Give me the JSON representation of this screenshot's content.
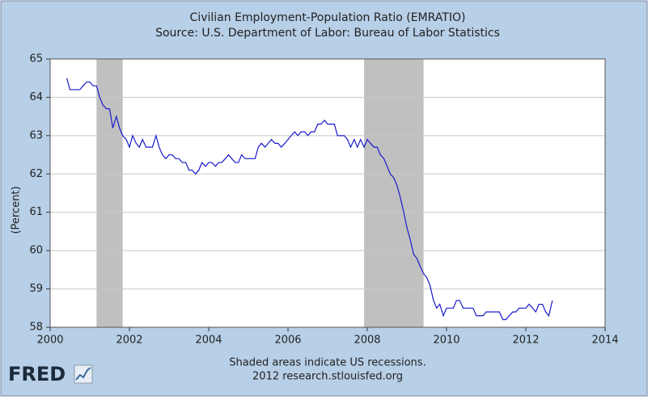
{
  "logo": "FRED",
  "chart_data": {
    "type": "line",
    "title": "Civilian Employment-Population Ratio (EMRATIO)",
    "subtitle": "Source: U.S. Department of Labor: Bureau of Labor Statistics",
    "y_label": "(Percent)",
    "notes": [
      "Shaded areas indicate US recessions.",
      "2012 research.stlouisfed.org"
    ],
    "color": "#1a1acc",
    "recession_color": "#c0c0c0",
    "recessions": [
      [
        2001.17,
        2001.83
      ],
      [
        2007.92,
        2009.42
      ]
    ],
    "xlim": [
      2000,
      2014
    ],
    "ylim": [
      58,
      65
    ],
    "xticks": [
      2000,
      2002,
      2004,
      2006,
      2008,
      2010,
      2012,
      2014
    ],
    "yticks": [
      58,
      59,
      60,
      61,
      62,
      63,
      64,
      65
    ],
    "grid": true,
    "x": [
      2000.42,
      2000.5,
      2000.58,
      2000.67,
      2000.75,
      2000.83,
      2000.92,
      2001,
      2001.08,
      2001.17,
      2001.25,
      2001.33,
      2001.42,
      2001.5,
      2001.58,
      2001.67,
      2001.75,
      2001.83,
      2001.92,
      2002,
      2002.08,
      2002.17,
      2002.25,
      2002.33,
      2002.42,
      2002.5,
      2002.58,
      2002.67,
      2002.75,
      2002.83,
      2002.92,
      2003,
      2003.08,
      2003.17,
      2003.25,
      2003.33,
      2003.42,
      2003.5,
      2003.58,
      2003.67,
      2003.75,
      2003.83,
      2003.92,
      2004,
      2004.08,
      2004.17,
      2004.25,
      2004.33,
      2004.42,
      2004.5,
      2004.58,
      2004.67,
      2004.75,
      2004.83,
      2004.92,
      2005,
      2005.08,
      2005.17,
      2005.25,
      2005.33,
      2005.42,
      2005.5,
      2005.58,
      2005.67,
      2005.75,
      2005.83,
      2005.92,
      2006,
      2006.08,
      2006.17,
      2006.25,
      2006.33,
      2006.42,
      2006.5,
      2006.58,
      2006.67,
      2006.75,
      2006.83,
      2006.92,
      2007,
      2007.08,
      2007.17,
      2007.25,
      2007.33,
      2007.42,
      2007.5,
      2007.58,
      2007.67,
      2007.75,
      2007.83,
      2007.92,
      2008,
      2008.08,
      2008.17,
      2008.25,
      2008.33,
      2008.42,
      2008.5,
      2008.58,
      2008.67,
      2008.75,
      2008.83,
      2008.92,
      2009,
      2009.08,
      2009.17,
      2009.25,
      2009.33,
      2009.42,
      2009.5,
      2009.58,
      2009.67,
      2009.75,
      2009.83,
      2009.92,
      2010,
      2010.08,
      2010.17,
      2010.25,
      2010.33,
      2010.42,
      2010.5,
      2010.58,
      2010.67,
      2010.75,
      2010.83,
      2010.92,
      2011,
      2011.08,
      2011.17,
      2011.25,
      2011.33,
      2011.42,
      2011.5,
      2011.58,
      2011.67,
      2011.75,
      2011.83,
      2011.92,
      2012,
      2012.08,
      2012.17,
      2012.25,
      2012.33,
      2012.42,
      2012.5,
      2012.58,
      2012.67
    ],
    "values": [
      64.5,
      64.2,
      64.2,
      64.2,
      64.2,
      64.3,
      64.4,
      64.4,
      64.3,
      64.3,
      64.0,
      63.8,
      63.7,
      63.7,
      63.2,
      63.5,
      63.2,
      63.0,
      62.9,
      62.7,
      63.0,
      62.8,
      62.7,
      62.9,
      62.7,
      62.7,
      62.7,
      63.0,
      62.7,
      62.5,
      62.4,
      62.5,
      62.5,
      62.4,
      62.4,
      62.3,
      62.3,
      62.1,
      62.1,
      62.0,
      62.1,
      62.3,
      62.2,
      62.3,
      62.3,
      62.2,
      62.3,
      62.3,
      62.4,
      62.5,
      62.4,
      62.3,
      62.3,
      62.5,
      62.4,
      62.4,
      62.4,
      62.4,
      62.7,
      62.8,
      62.7,
      62.8,
      62.9,
      62.8,
      62.8,
      62.7,
      62.8,
      62.9,
      63.0,
      63.1,
      63.0,
      63.1,
      63.1,
      63.0,
      63.1,
      63.1,
      63.3,
      63.3,
      63.4,
      63.3,
      63.3,
      63.3,
      63.0,
      63.0,
      63.0,
      62.9,
      62.7,
      62.9,
      62.7,
      62.9,
      62.7,
      62.9,
      62.8,
      62.7,
      62.7,
      62.5,
      62.4,
      62.2,
      62.0,
      61.9,
      61.7,
      61.4,
      61.0,
      60.6,
      60.3,
      59.9,
      59.8,
      59.6,
      59.4,
      59.3,
      59.1,
      58.7,
      58.5,
      58.6,
      58.3,
      58.5,
      58.5,
      58.5,
      58.7,
      58.7,
      58.5,
      58.5,
      58.5,
      58.5,
      58.3,
      58.3,
      58.3,
      58.4,
      58.4,
      58.4,
      58.4,
      58.4,
      58.2,
      58.2,
      58.3,
      58.4,
      58.4,
      58.5,
      58.5,
      58.5,
      58.6,
      58.5,
      58.4,
      58.6,
      58.6,
      58.4,
      58.3,
      58.7
    ]
  }
}
